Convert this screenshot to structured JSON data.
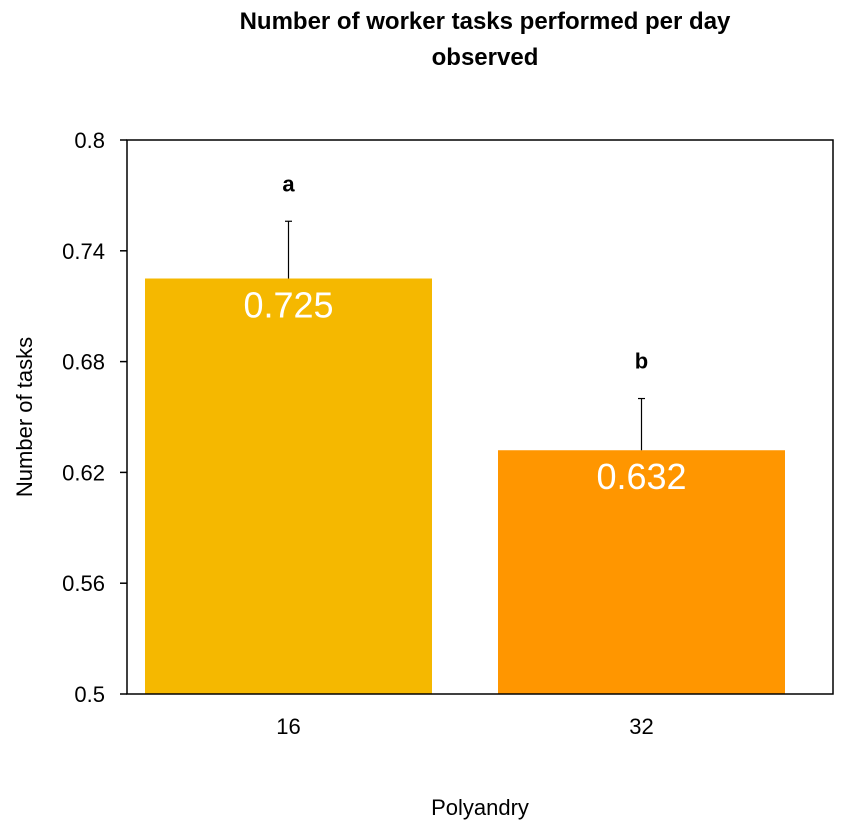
{
  "chart_data": {
    "type": "bar",
    "title_lines": [
      "Number of worker tasks performed per day",
      "observed"
    ],
    "xlabel": "Polyandry",
    "ylabel": "Number of tasks",
    "categories": [
      "16",
      "32"
    ],
    "values": [
      0.725,
      0.632
    ],
    "value_labels": [
      "0.725",
      "0.632"
    ],
    "error_upper": [
      0.756,
      0.66
    ],
    "significance_letters": [
      "a",
      "b"
    ],
    "ylim": [
      0.5,
      0.8
    ],
    "yticks": [
      0.5,
      0.56,
      0.62,
      0.68,
      0.74,
      0.8
    ],
    "ytick_labels": [
      "0.5",
      "0.56",
      "0.62",
      "0.68",
      "0.74",
      "0.8"
    ],
    "bar_colors": [
      "#F5B800",
      "#FF9600"
    ],
    "grid": false,
    "legend": "none"
  }
}
